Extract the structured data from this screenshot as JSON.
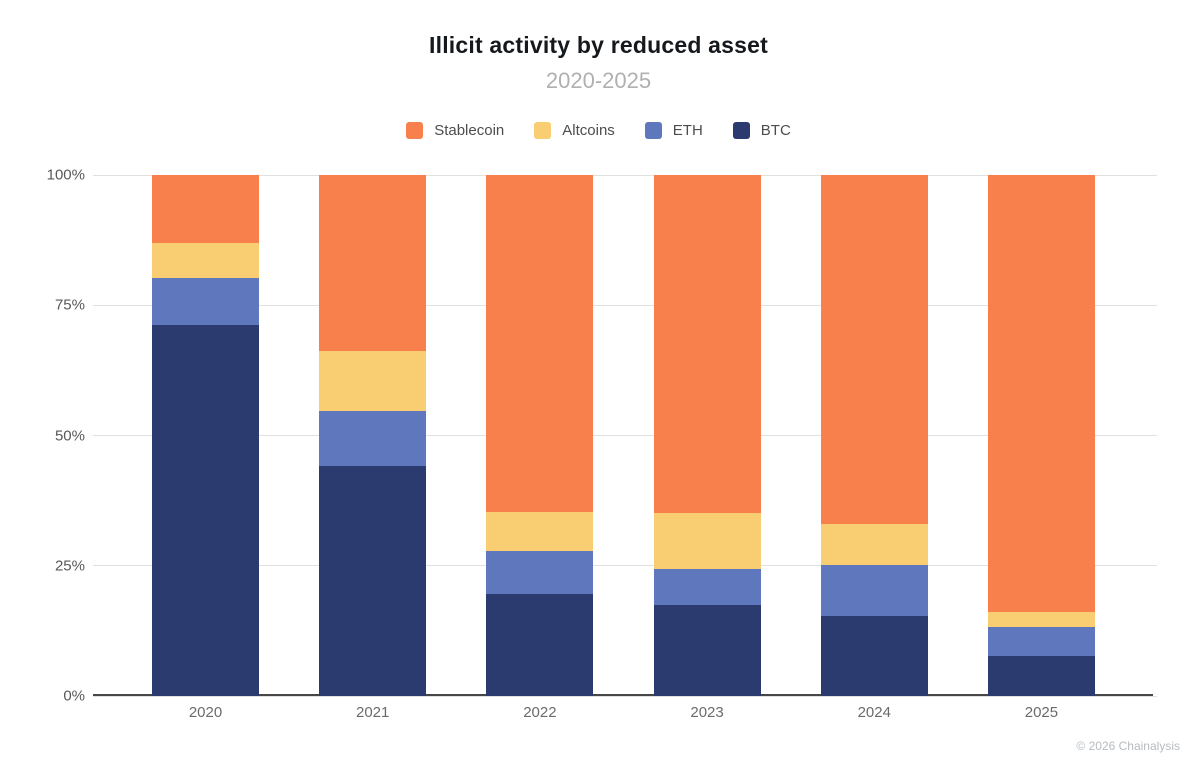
{
  "title": "Illicit activity by reduced asset",
  "subtitle": "2020-2025",
  "footer_credit": "© 2026 Chainalysis",
  "chart_data": {
    "type": "bar",
    "stacked": true,
    "title": "Illicit activity by reduced asset",
    "subtitle": "2020-2025",
    "xlabel": "",
    "ylabel": "",
    "ylim": [
      0,
      100
    ],
    "grid": true,
    "legend_position": "top",
    "categories": [
      "2020",
      "2021",
      "2022",
      "2023",
      "2024",
      "2025"
    ],
    "series": [
      {
        "name": "BTC",
        "color": "#2b3a6f",
        "values": [
          71.3,
          44.1,
          19.5,
          17.5,
          15.4,
          7.7
        ]
      },
      {
        "name": "ETH",
        "color": "#5f77bd",
        "values": [
          8.9,
          10.6,
          8.3,
          6.9,
          9.7,
          5.6
        ]
      },
      {
        "name": "Altcoins",
        "color": "#f9ce73",
        "values": [
          6.8,
          11.5,
          7.5,
          10.7,
          7.9,
          2.8
        ]
      },
      {
        "name": "Stablecoin",
        "color": "#f8804d",
        "values": [
          13.0,
          33.8,
          64.7,
          64.9,
          67.0,
          83.9
        ]
      }
    ],
    "legend_order": [
      "Stablecoin",
      "Altcoins",
      "ETH",
      "BTC"
    ],
    "y_ticks": [
      {
        "value": 100,
        "label": "100%"
      },
      {
        "value": 75,
        "label": "75%"
      },
      {
        "value": 50,
        "label": "50%"
      },
      {
        "value": 25,
        "label": "25%"
      },
      {
        "value": 0,
        "label": "0%"
      }
    ]
  }
}
